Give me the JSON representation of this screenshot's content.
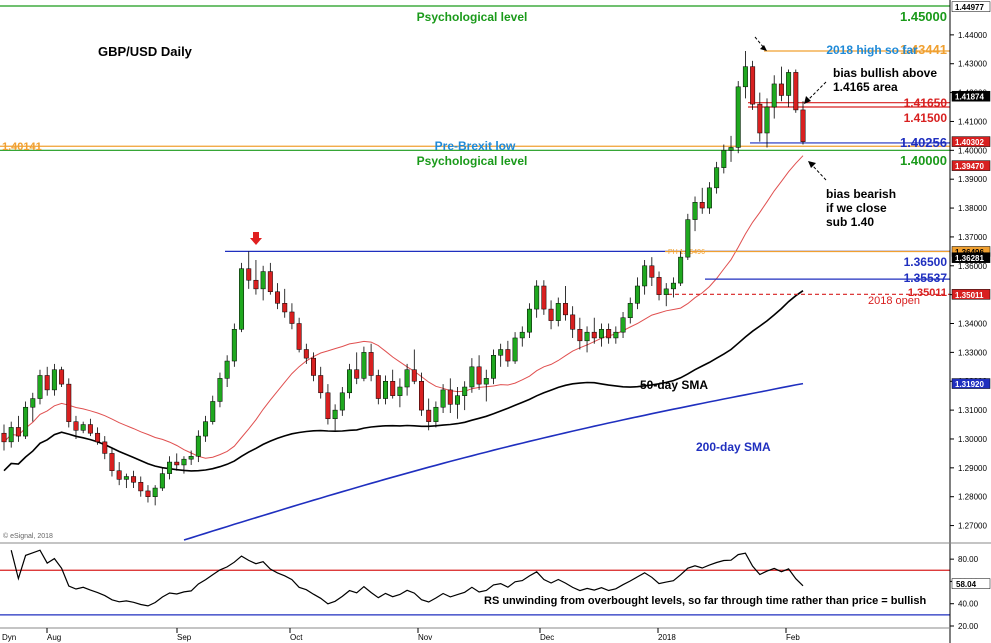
{
  "chart_data": {
    "type": "candlestick",
    "title": "GBP/USD Daily",
    "watermark": "© eSignal, 2018",
    "x_axis": {
      "ticks": [
        "Aug",
        "Sep",
        "Oct",
        "Nov",
        "Dec",
        "2018",
        "Feb"
      ],
      "corner_label": "Dyn"
    },
    "y_axis": {
      "ylim": [
        1.265,
        1.45
      ],
      "ticks": [
        1.27,
        1.28,
        1.29,
        1.3,
        1.31,
        1.32,
        1.33,
        1.34,
        1.35,
        1.36,
        1.37,
        1.38,
        1.39,
        1.4,
        1.41,
        1.42,
        1.43,
        1.44
      ],
      "tick_labels": [
        "1.27000",
        "1.28000",
        "1.29000",
        "1.30000",
        "1.31000",
        "1.32000",
        "1.33000",
        "1.34000",
        "1.35000",
        "1.36000",
        "1.37000",
        "1.38000",
        "1.39000",
        "1.40000",
        "1.41000",
        "1.42000",
        "1.43000",
        "1.44000"
      ]
    },
    "price_tags": [
      {
        "value": 1.44977,
        "text": "1.44977",
        "color": "#ffffff",
        "text_color": "#000000"
      },
      {
        "value": 1.41874,
        "text": "1.41874",
        "color": "#000000",
        "text_color": "#ffffff"
      },
      {
        "value": 1.40302,
        "text": "1.40302",
        "color": "#d82020",
        "text_color": "#ffffff"
      },
      {
        "value": 1.3947,
        "text": "1.39470",
        "color": "#d82020",
        "text_color": "#ffffff"
      },
      {
        "value": 1.36496,
        "text": "1.36496",
        "color": "#f0a030",
        "text_color": "#000000"
      },
      {
        "value": 1.36281,
        "text": "1.36281",
        "color": "#000000",
        "text_color": "#ffffff"
      },
      {
        "value": 1.35011,
        "text": "1.35011",
        "color": "#d82020",
        "text_color": "#ffffff"
      },
      {
        "value": 1.3192,
        "text": "1.31920",
        "color": "#1f2fbf",
        "text_color": "#ffffff"
      }
    ],
    "levels": [
      {
        "value": 1.45,
        "label": "1.45000",
        "note": "Psychological level",
        "color": "#1a9a1a",
        "style": "solid"
      },
      {
        "value": 1.43441,
        "label": "1.43441",
        "note": "2018 high so far",
        "color": "#f0a030",
        "style": "solid"
      },
      {
        "value": 1.4165,
        "label": "1.41650",
        "note": "",
        "color": "#d82020",
        "style": "solid"
      },
      {
        "value": 1.415,
        "label": "1.41500",
        "note": "",
        "color": "#d82020",
        "style": "solid"
      },
      {
        "value": 1.40256,
        "label": "1.40256",
        "note": "",
        "color": "#1f2fbf",
        "style": "solid"
      },
      {
        "value": 1.40141,
        "label": "1.40141",
        "note": "Pre-Brexit low",
        "color": "#f0a030",
        "style": "solid"
      },
      {
        "value": 1.4,
        "label": "1.40000",
        "note": "Psychological level",
        "color": "#1a9a1a",
        "style": "solid"
      },
      {
        "value": 1.365,
        "label": "1.36500",
        "note": "",
        "color": "#1f2fbf",
        "style": "solid"
      },
      {
        "value": 1.36496,
        "label": "PH 1.36496",
        "note": "",
        "color": "#f0a030",
        "style": "solid"
      },
      {
        "value": 1.35537,
        "label": "1.35537",
        "note": "",
        "color": "#1f2fbf",
        "style": "solid"
      },
      {
        "value": 1.35011,
        "label": "1.35011",
        "note": "2018 open",
        "color": "#d82020",
        "style": "dashed"
      }
    ],
    "annotations": [
      {
        "text": "bias bullish above\n1.4165 area"
      },
      {
        "text": "bias bearish\nif we close\nsub 1.40"
      },
      {
        "text": "50-day SMA"
      },
      {
        "text": "200-day SMA"
      }
    ],
    "candles": [
      [
        1.302,
        1.305,
        1.296,
        1.299
      ],
      [
        1.299,
        1.306,
        1.297,
        1.304
      ],
      [
        1.304,
        1.308,
        1.299,
        1.301
      ],
      [
        1.301,
        1.313,
        1.3,
        1.311
      ],
      [
        1.311,
        1.316,
        1.306,
        1.314
      ],
      [
        1.314,
        1.324,
        1.312,
        1.322
      ],
      [
        1.322,
        1.325,
        1.315,
        1.317
      ],
      [
        1.317,
        1.326,
        1.315,
        1.324
      ],
      [
        1.324,
        1.325,
        1.318,
        1.319
      ],
      [
        1.319,
        1.321,
        1.304,
        1.306
      ],
      [
        1.306,
        1.308,
        1.3,
        1.303
      ],
      [
        1.303,
        1.306,
        1.302,
        1.305
      ],
      [
        1.305,
        1.307,
        1.301,
        1.302
      ],
      [
        1.302,
        1.304,
        1.298,
        1.299
      ],
      [
        1.299,
        1.301,
        1.293,
        1.295
      ],
      [
        1.295,
        1.297,
        1.287,
        1.289
      ],
      [
        1.289,
        1.292,
        1.284,
        1.286
      ],
      [
        1.286,
        1.288,
        1.283,
        1.287
      ],
      [
        1.287,
        1.289,
        1.283,
        1.285
      ],
      [
        1.285,
        1.287,
        1.28,
        1.282
      ],
      [
        1.282,
        1.284,
        1.278,
        1.28
      ],
      [
        1.28,
        1.284,
        1.277,
        1.283
      ],
      [
        1.283,
        1.29,
        1.282,
        1.288
      ],
      [
        1.288,
        1.294,
        1.286,
        1.292
      ],
      [
        1.292,
        1.295,
        1.289,
        1.291
      ],
      [
        1.291,
        1.294,
        1.288,
        1.293
      ],
      [
        1.293,
        1.296,
        1.291,
        1.294
      ],
      [
        1.294,
        1.303,
        1.292,
        1.301
      ],
      [
        1.301,
        1.308,
        1.299,
        1.306
      ],
      [
        1.306,
        1.315,
        1.305,
        1.313
      ],
      [
        1.313,
        1.323,
        1.311,
        1.321
      ],
      [
        1.321,
        1.329,
        1.318,
        1.327
      ],
      [
        1.327,
        1.34,
        1.325,
        1.338
      ],
      [
        1.338,
        1.361,
        1.337,
        1.359
      ],
      [
        1.359,
        1.365,
        1.352,
        1.355
      ],
      [
        1.355,
        1.362,
        1.35,
        1.352
      ],
      [
        1.352,
        1.36,
        1.348,
        1.358
      ],
      [
        1.358,
        1.361,
        1.35,
        1.351
      ],
      [
        1.351,
        1.354,
        1.345,
        1.347
      ],
      [
        1.347,
        1.352,
        1.342,
        1.344
      ],
      [
        1.344,
        1.347,
        1.338,
        1.34
      ],
      [
        1.34,
        1.342,
        1.33,
        1.331
      ],
      [
        1.331,
        1.333,
        1.326,
        1.328
      ],
      [
        1.328,
        1.33,
        1.32,
        1.322
      ],
      [
        1.322,
        1.325,
        1.314,
        1.316
      ],
      [
        1.316,
        1.319,
        1.305,
        1.307
      ],
      [
        1.307,
        1.312,
        1.303,
        1.31
      ],
      [
        1.31,
        1.318,
        1.308,
        1.316
      ],
      [
        1.316,
        1.326,
        1.314,
        1.324
      ],
      [
        1.324,
        1.33,
        1.319,
        1.321
      ],
      [
        1.321,
        1.332,
        1.32,
        1.33
      ],
      [
        1.33,
        1.333,
        1.32,
        1.322
      ],
      [
        1.322,
        1.324,
        1.312,
        1.314
      ],
      [
        1.314,
        1.322,
        1.312,
        1.32
      ],
      [
        1.32,
        1.324,
        1.314,
        1.315
      ],
      [
        1.315,
        1.321,
        1.311,
        1.318
      ],
      [
        1.318,
        1.326,
        1.315,
        1.324
      ],
      [
        1.324,
        1.331,
        1.319,
        1.32
      ],
      [
        1.32,
        1.323,
        1.308,
        1.31
      ],
      [
        1.31,
        1.314,
        1.303,
        1.306
      ],
      [
        1.306,
        1.313,
        1.304,
        1.311
      ],
      [
        1.311,
        1.319,
        1.309,
        1.317
      ],
      [
        1.317,
        1.321,
        1.309,
        1.312
      ],
      [
        1.312,
        1.318,
        1.307,
        1.315
      ],
      [
        1.315,
        1.32,
        1.31,
        1.318
      ],
      [
        1.318,
        1.328,
        1.316,
        1.325
      ],
      [
        1.325,
        1.329,
        1.317,
        1.319
      ],
      [
        1.319,
        1.324,
        1.313,
        1.321
      ],
      [
        1.321,
        1.331,
        1.319,
        1.329
      ],
      [
        1.329,
        1.333,
        1.325,
        1.331
      ],
      [
        1.331,
        1.334,
        1.325,
        1.327
      ],
      [
        1.327,
        1.337,
        1.326,
        1.335
      ],
      [
        1.335,
        1.339,
        1.332,
        1.337
      ],
      [
        1.337,
        1.347,
        1.335,
        1.345
      ],
      [
        1.345,
        1.355,
        1.342,
        1.353
      ],
      [
        1.353,
        1.355,
        1.343,
        1.345
      ],
      [
        1.345,
        1.348,
        1.338,
        1.341
      ],
      [
        1.341,
        1.349,
        1.339,
        1.347
      ],
      [
        1.347,
        1.353,
        1.341,
        1.343
      ],
      [
        1.343,
        1.346,
        1.335,
        1.338
      ],
      [
        1.338,
        1.342,
        1.331,
        1.334
      ],
      [
        1.334,
        1.339,
        1.33,
        1.337
      ],
      [
        1.337,
        1.342,
        1.333,
        1.335
      ],
      [
        1.335,
        1.34,
        1.332,
        1.338
      ],
      [
        1.338,
        1.34,
        1.333,
        1.335
      ],
      [
        1.335,
        1.339,
        1.333,
        1.337
      ],
      [
        1.337,
        1.344,
        1.335,
        1.342
      ],
      [
        1.342,
        1.349,
        1.34,
        1.347
      ],
      [
        1.347,
        1.356,
        1.345,
        1.353
      ],
      [
        1.353,
        1.362,
        1.35,
        1.36
      ],
      [
        1.36,
        1.363,
        1.353,
        1.356
      ],
      [
        1.356,
        1.358,
        1.348,
        1.35
      ],
      [
        1.35,
        1.354,
        1.346,
        1.352
      ],
      [
        1.352,
        1.356,
        1.349,
        1.354
      ],
      [
        1.354,
        1.365,
        1.353,
        1.363
      ],
      [
        1.363,
        1.378,
        1.362,
        1.376
      ],
      [
        1.376,
        1.384,
        1.372,
        1.382
      ],
      [
        1.382,
        1.387,
        1.378,
        1.38
      ],
      [
        1.38,
        1.389,
        1.378,
        1.387
      ],
      [
        1.387,
        1.396,
        1.385,
        1.394
      ],
      [
        1.394,
        1.402,
        1.392,
        1.4
      ],
      [
        1.4,
        1.405,
        1.396,
        1.401
      ],
      [
        1.401,
        1.424,
        1.399,
        1.422
      ],
      [
        1.422,
        1.4344,
        1.418,
        1.429
      ],
      [
        1.429,
        1.431,
        1.414,
        1.416
      ],
      [
        1.416,
        1.42,
        1.403,
        1.406
      ],
      [
        1.406,
        1.418,
        1.401,
        1.415
      ],
      [
        1.415,
        1.426,
        1.411,
        1.423
      ],
      [
        1.423,
        1.429,
        1.417,
        1.419
      ],
      [
        1.419,
        1.428,
        1.415,
        1.427
      ],
      [
        1.427,
        1.428,
        1.413,
        1.414
      ],
      [
        1.414,
        1.417,
        1.402,
        1.403
      ]
    ],
    "rsi": {
      "ylim": [
        20,
        90
      ],
      "ticks": [
        20,
        40,
        60,
        80
      ],
      "tick_labels": [
        "20.00",
        "40.00",
        "60.00",
        "80.00"
      ],
      "overbought": 70,
      "oversold": 30,
      "last_label": "58.04",
      "annotation": "RS unwinding from overbought levels, so far through time rather than price = bullish"
    }
  }
}
